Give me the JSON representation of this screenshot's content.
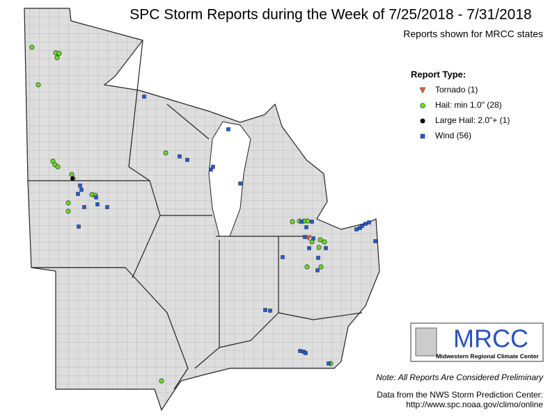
{
  "title": "SPC Storm Reports during the Week of 7/25/2018 - 7/31/2018",
  "subtitle": "Reports shown for MRCC states",
  "legend": {
    "title": "Report Type:",
    "items": [
      "Tornado (1)",
      "Hail: min 1.0\" (28)",
      "Large Hail: 2.0\"+ (1)",
      "Wind (56)"
    ]
  },
  "logo": {
    "name": "MRCC",
    "caption": "Midwestern Regional Climate Center"
  },
  "note": "Note: All Reports Are Considered Preliminary",
  "source": [
    "Data from the NWS Storm Prediction Center:",
    "http://www.spc.noaa.gov/climo/online"
  ]
}
